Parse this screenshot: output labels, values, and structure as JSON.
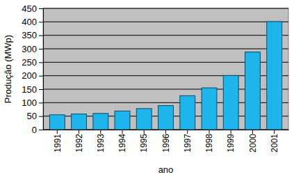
{
  "chart_data": {
    "type": "bar",
    "y_label": "Produção (MWp)",
    "x_label": "ano",
    "categories": [
      "1991",
      "1992",
      "1993",
      "1994",
      "1995",
      "1996",
      "1997",
      "1998",
      "1999",
      "2000",
      "2001"
    ],
    "values": [
      55,
      58,
      60,
      69,
      78,
      89,
      126,
      155,
      201,
      288,
      401
    ],
    "color": "#1eb4ec",
    "ylim": [
      0,
      450
    ],
    "yticks": [
      0,
      50,
      100,
      150,
      200,
      250,
      300,
      350,
      400,
      450
    ],
    "grid": true
  }
}
